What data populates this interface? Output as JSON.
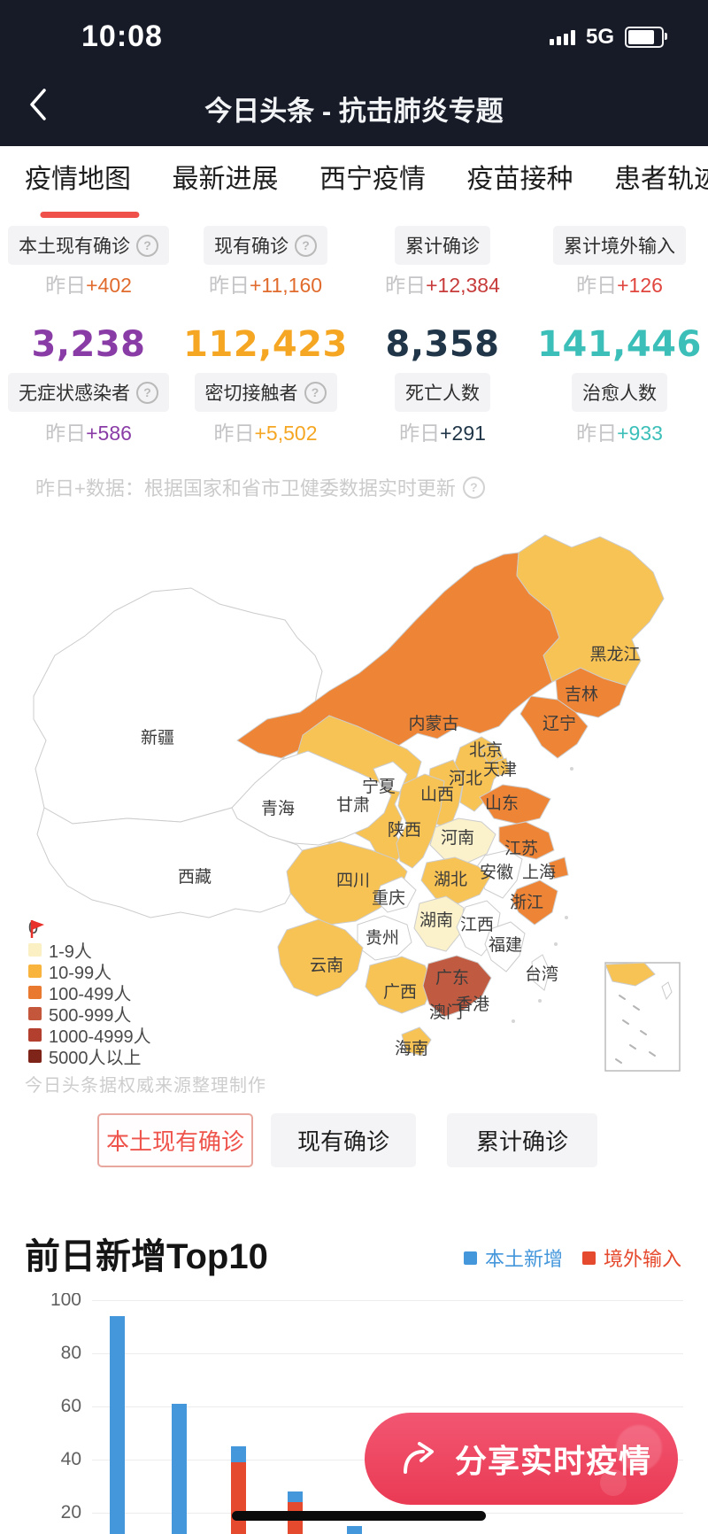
{
  "status_bar": {
    "time": "10:08",
    "network": "5G",
    "battery_level": "80%"
  },
  "nav": {
    "title": "今日头条 - 抗击肺炎专题"
  },
  "tabs": [
    {
      "label": "疫情地图",
      "active": true
    },
    {
      "label": "最新进展",
      "active": false
    },
    {
      "label": "西宁疫情",
      "active": false
    },
    {
      "label": "疫苗接种",
      "active": false
    },
    {
      "label": "患者轨迹",
      "active": false
    }
  ],
  "stats": {
    "delta_prefix": "昨日",
    "top_row": [
      {
        "label": "本土现有确诊",
        "has_help": true,
        "delta": "+402",
        "delta_color": "#e06b2d"
      },
      {
        "label": "现有确诊",
        "has_help": true,
        "delta": "+11,160",
        "delta_color": "#e06b2d"
      },
      {
        "label": "累计确诊",
        "has_help": false,
        "delta": "+12,384",
        "delta_color": "#c73b3b"
      },
      {
        "label": "累计境外输入",
        "has_help": false,
        "delta": "+126",
        "delta_color": "#e0453e"
      }
    ],
    "bottom_row": [
      {
        "label": "无症状感染者",
        "has_help": true,
        "value": "3,238",
        "color": "#8a3ca6",
        "delta": "+586",
        "delta_color": "#8a3ca6"
      },
      {
        "label": "密切接触者",
        "has_help": true,
        "value": "112,423",
        "color": "#f5a623",
        "delta": "+5,502",
        "delta_color": "#f5a623"
      },
      {
        "label": "死亡人数",
        "has_help": false,
        "value": "8,358",
        "color": "#203648",
        "delta": "+291",
        "delta_color": "#203648"
      },
      {
        "label": "治愈人数",
        "has_help": false,
        "value": "141,446",
        "color": "#3cbfb9",
        "delta": "+933",
        "delta_color": "#3cbfb9"
      }
    ]
  },
  "note": {
    "text": "昨日+数据：根据国家和省市卫健委数据实时更新",
    "has_help": true
  },
  "map": {
    "level_colors": {
      "0": "#ffffff",
      "1-9": "#fbf2cc",
      "10-99": "#f8c355",
      "100-499": "#ee8435",
      "500-999": "#c05a40",
      "1000-4999": "#b2402e",
      "5000+": "#7d2418"
    },
    "provinces": [
      {
        "name": "新疆",
        "level": "0"
      },
      {
        "name": "西藏",
        "level": "0"
      },
      {
        "name": "内蒙古",
        "level": "100-499"
      },
      {
        "name": "黑龙江",
        "level": "10-99"
      },
      {
        "name": "甘肃",
        "level": "10-99"
      },
      {
        "name": "青海",
        "level": "0"
      },
      {
        "name": "吉林",
        "level": "100-499"
      },
      {
        "name": "辽宁",
        "level": "100-499"
      },
      {
        "name": "河北",
        "level": "10-99"
      },
      {
        "name": "山西",
        "level": "10-99"
      },
      {
        "name": "陕西",
        "level": "10-99"
      },
      {
        "name": "山东",
        "level": "100-499"
      },
      {
        "name": "河南",
        "level": "1-9"
      },
      {
        "name": "江苏",
        "level": "100-499"
      },
      {
        "name": "安徽",
        "level": "0"
      },
      {
        "name": "湖北",
        "level": "10-99"
      },
      {
        "name": "四川",
        "level": "10-99"
      },
      {
        "name": "重庆",
        "level": "0"
      },
      {
        "name": "湖南",
        "level": "1-9"
      },
      {
        "name": "江西",
        "level": "0"
      },
      {
        "name": "贵州",
        "level": "0"
      },
      {
        "name": "云南",
        "level": "10-99"
      },
      {
        "name": "广西",
        "level": "10-99"
      },
      {
        "name": "广东",
        "level": "500-999"
      },
      {
        "name": "福建",
        "level": "0"
      },
      {
        "name": "浙江",
        "level": "100-499"
      },
      {
        "name": "上海",
        "level": "100-499"
      },
      {
        "name": "北京",
        "level": "10-99"
      },
      {
        "name": "天津",
        "level": "10-99"
      },
      {
        "name": "宁夏",
        "level": "0"
      },
      {
        "name": "台湾",
        "level": "0"
      },
      {
        "name": "海南",
        "level": "10-99"
      },
      {
        "name": "香港",
        "label_only": true
      },
      {
        "name": "澳门",
        "label_only": true
      }
    ],
    "legend": [
      {
        "label": "0",
        "swatch": "flag",
        "color": "#e8312a"
      },
      {
        "label": "1-9人",
        "color": "#faf0c4"
      },
      {
        "label": "10-99人",
        "color": "#f9b43e"
      },
      {
        "label": "100-499人",
        "color": "#e9792f"
      },
      {
        "label": "500-999人",
        "color": "#c4563c"
      },
      {
        "label": "1000-4999人",
        "color": "#b3402f"
      },
      {
        "label": "5000人以上",
        "color": "#7e2418"
      }
    ],
    "attribution": "今日头条据权威来源整理制作"
  },
  "filter_buttons": [
    {
      "label": "本土现有确诊",
      "active": true
    },
    {
      "label": "现有确诊",
      "active": false
    },
    {
      "label": "累计确诊",
      "active": false
    }
  ],
  "chart_data": {
    "type": "bar",
    "stacked": true,
    "title": "前日新增Top10",
    "legend": [
      {
        "name": "本土新增",
        "color": "#4597dc"
      },
      {
        "name": "境外输入",
        "color": "#e64a2e"
      }
    ],
    "y_ticks": [
      100,
      80,
      60,
      40,
      20
    ],
    "ylim": [
      0,
      100
    ],
    "x_labels_visible": false,
    "truncated_at_bottom": true,
    "bars": [
      {
        "local": 94,
        "imported": 0
      },
      {
        "local": 61,
        "imported": 0
      },
      {
        "local": 6,
        "imported": 39
      },
      {
        "local": 4,
        "imported": 24
      },
      {
        "local": 15,
        "imported": 0
      }
    ]
  },
  "share": {
    "label": "分享实时疫情"
  }
}
